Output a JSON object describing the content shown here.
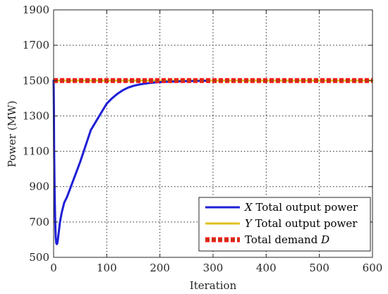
{
  "chart_data": {
    "type": "line",
    "xlabel": "Iteration",
    "ylabel": "Power (MW)",
    "xlim": [
      0,
      600
    ],
    "ylim": [
      500,
      1900
    ],
    "xticks": [
      0,
      100,
      200,
      300,
      400,
      500,
      600
    ],
    "yticks": [
      500,
      700,
      900,
      1100,
      1300,
      1500,
      1700,
      1900
    ],
    "x_tick_labels": [
      "0",
      "100",
      "200",
      "300",
      "400",
      "500",
      "600"
    ],
    "y_tick_labels": [
      "500",
      "700",
      "900",
      "1100",
      "1300",
      "1500",
      "1700",
      "1900"
    ],
    "grid": true,
    "legend_position": "bottom-right",
    "series": [
      {
        "name": "X Total output power",
        "legend_parts": [
          "X",
          " Total output power"
        ],
        "color": "#1f1fd6",
        "style": "solid",
        "x": [
          0,
          0.5,
          1,
          2,
          3,
          4,
          5,
          6,
          7,
          8,
          10,
          12,
          15,
          20,
          25,
          30,
          40,
          50,
          60,
          70,
          80,
          90,
          100,
          110,
          120,
          130,
          140,
          150,
          160,
          170,
          180,
          190,
          200,
          220,
          240,
          260,
          280,
          290
        ],
        "y": [
          1500,
          1350,
          1100,
          850,
          700,
          610,
          580,
          575,
          580,
          600,
          650,
          700,
          750,
          810,
          840,
          880,
          960,
          1040,
          1130,
          1220,
          1270,
          1320,
          1370,
          1400,
          1425,
          1445,
          1460,
          1470,
          1477,
          1482,
          1486,
          1489,
          1491,
          1494,
          1496,
          1497,
          1498,
          1499
        ]
      },
      {
        "name": "Y Total output power",
        "legend_parts": [
          "Y",
          " Total output power"
        ],
        "color": "#e0c020",
        "style": "solid",
        "x": [
          0,
          600
        ],
        "y": [
          1500,
          1500
        ]
      },
      {
        "name": "Total demand D",
        "legend_parts": [
          "Total demand ",
          "D"
        ],
        "color": "#ff1a1a",
        "style": "dotted",
        "x": [
          0,
          600
        ],
        "y": [
          1500,
          1500
        ]
      }
    ]
  },
  "colors": {
    "axis": "#262626",
    "grid": "#262626"
  }
}
